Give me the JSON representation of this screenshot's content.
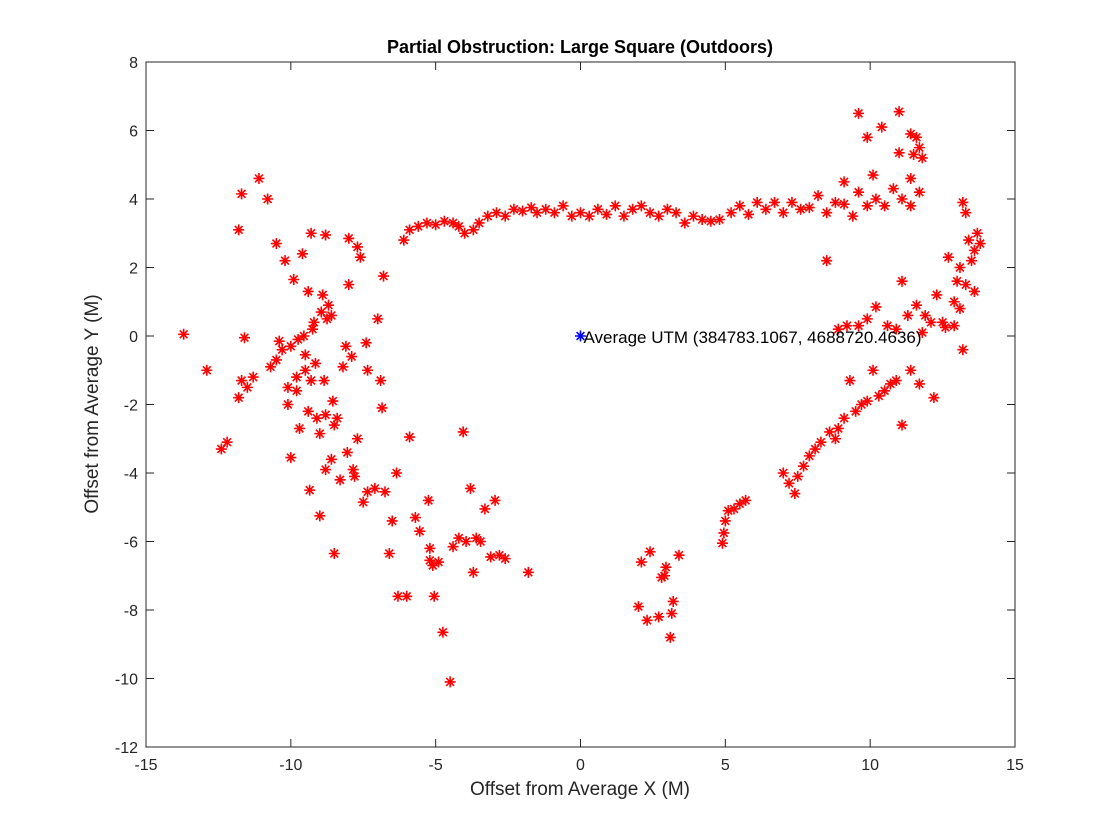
{
  "chart_data": {
    "type": "scatter",
    "title": "Partial Obstruction: Large Square (Outdoors)",
    "xlabel": "Offset from Average X (M)",
    "ylabel": "Offset from Average Y (M)",
    "xlim": [
      -15,
      15
    ],
    "ylim": [
      -12,
      8
    ],
    "xticks": [
      -15,
      -10,
      -5,
      0,
      5,
      10,
      15
    ],
    "yticks": [
      -12,
      -10,
      -8,
      -6,
      -4,
      -2,
      0,
      2,
      4,
      6,
      8
    ],
    "grid": false,
    "marker": "asterisk",
    "colors": {
      "samples": "#ff0000",
      "average": "#0000ff",
      "axes": "#262626"
    },
    "annotation": {
      "x": 0,
      "y": 0,
      "text": "Average UTM (384783.1067, 4688720.4636)"
    },
    "series": [
      {
        "role": "samples",
        "color": "#ff0000",
        "points": [
          [
            -13.7,
            0.05
          ],
          [
            -12.9,
            -1.0
          ],
          [
            -12.4,
            -3.3
          ],
          [
            -12.2,
            -3.1
          ],
          [
            -11.8,
            -1.8
          ],
          [
            -11.7,
            -1.3
          ],
          [
            -11.5,
            -1.5
          ],
          [
            -11.3,
            -1.2
          ],
          [
            -11.6,
            -0.05
          ],
          [
            -11.8,
            3.1
          ],
          [
            -11.7,
            4.15
          ],
          [
            -11.1,
            4.6
          ],
          [
            -10.8,
            4.0
          ],
          [
            -10.7,
            -0.9
          ],
          [
            -10.5,
            -0.7
          ],
          [
            -10.3,
            -0.4
          ],
          [
            -10.4,
            -0.15
          ],
          [
            -10.5,
            2.7
          ],
          [
            -10.2,
            2.2
          ],
          [
            -10.1,
            -1.5
          ],
          [
            -10.1,
            -2.0
          ],
          [
            -10.0,
            -3.55
          ],
          [
            -10.0,
            -0.3
          ],
          [
            -9.9,
            1.65
          ],
          [
            -9.8,
            -1.2
          ],
          [
            -9.8,
            -1.6
          ],
          [
            -9.75,
            -0.1
          ],
          [
            -9.7,
            -2.7
          ],
          [
            -9.6,
            2.4
          ],
          [
            -9.55,
            0.0
          ],
          [
            -9.5,
            -0.55
          ],
          [
            -9.5,
            -1.0
          ],
          [
            -9.4,
            -2.2
          ],
          [
            -9.35,
            -4.5
          ],
          [
            -9.4,
            1.3
          ],
          [
            -9.3,
            -1.3
          ],
          [
            -9.25,
            0.2
          ],
          [
            -9.2,
            0.4
          ],
          [
            -9.3,
            3.0
          ],
          [
            -9.15,
            -0.8
          ],
          [
            -9.1,
            -2.4
          ],
          [
            -9.0,
            -5.25
          ],
          [
            -9.0,
            -2.85
          ],
          [
            -8.95,
            0.7
          ],
          [
            -8.9,
            1.2
          ],
          [
            -8.85,
            -1.3
          ],
          [
            -8.8,
            -2.3
          ],
          [
            -8.8,
            -3.9
          ],
          [
            -8.75,
            0.5
          ],
          [
            -8.7,
            0.9
          ],
          [
            -8.6,
            0.6
          ],
          [
            -8.8,
            2.95
          ],
          [
            -8.6,
            -3.6
          ],
          [
            -8.55,
            -1.9
          ],
          [
            -8.5,
            -2.6
          ],
          [
            -8.4,
            -2.4
          ],
          [
            -8.5,
            -6.35
          ],
          [
            -8.3,
            -4.2
          ],
          [
            -8.2,
            -0.9
          ],
          [
            -8.1,
            -0.3
          ],
          [
            -8.05,
            -3.4
          ],
          [
            -8.0,
            2.85
          ],
          [
            -8.0,
            1.5
          ],
          [
            -7.9,
            -0.6
          ],
          [
            -7.85,
            -3.9
          ],
          [
            -7.8,
            -4.1
          ],
          [
            -7.7,
            -3.0
          ],
          [
            -7.7,
            2.6
          ],
          [
            -7.6,
            2.3
          ],
          [
            -7.5,
            -4.85
          ],
          [
            -7.4,
            -0.2
          ],
          [
            -7.35,
            -1.0
          ],
          [
            -7.35,
            -4.55
          ],
          [
            -7.1,
            -4.45
          ],
          [
            -7.0,
            0.5
          ],
          [
            -6.9,
            -1.3
          ],
          [
            -6.85,
            -2.1
          ],
          [
            -6.8,
            1.75
          ],
          [
            -6.75,
            -4.55
          ],
          [
            -6.6,
            -6.35
          ],
          [
            -6.5,
            -5.4
          ],
          [
            -6.35,
            -4.0
          ],
          [
            -6.3,
            -7.6
          ],
          [
            -6.1,
            2.8
          ],
          [
            -6.0,
            -7.6
          ],
          [
            -5.9,
            -2.95
          ],
          [
            -5.7,
            -5.3
          ],
          [
            -5.55,
            -5.7
          ],
          [
            -5.2,
            -6.2
          ],
          [
            -5.2,
            -6.55
          ],
          [
            -5.25,
            -4.8
          ],
          [
            -5.1,
            -6.7
          ],
          [
            -5.05,
            -7.6
          ],
          [
            -4.9,
            -6.6
          ],
          [
            -4.75,
            -8.65
          ],
          [
            -4.5,
            -10.1
          ],
          [
            -4.4,
            -6.15
          ],
          [
            -4.2,
            -5.9
          ],
          [
            -4.05,
            -2.8
          ],
          [
            -3.95,
            -6.0
          ],
          [
            -3.8,
            -4.45
          ],
          [
            -3.7,
            -6.9
          ],
          [
            -3.6,
            -5.9
          ],
          [
            -3.45,
            -6.0
          ],
          [
            -3.3,
            -5.05
          ],
          [
            -3.1,
            -6.45
          ],
          [
            -2.95,
            -4.8
          ],
          [
            -2.8,
            -6.4
          ],
          [
            -2.6,
            -6.5
          ],
          [
            -1.8,
            -6.9
          ],
          [
            -5.9,
            3.1
          ],
          [
            -5.6,
            3.2
          ],
          [
            -5.3,
            3.3
          ],
          [
            -5.0,
            3.25
          ],
          [
            -4.7,
            3.35
          ],
          [
            -4.4,
            3.3
          ],
          [
            -4.2,
            3.2
          ],
          [
            -4.0,
            3.0
          ],
          [
            -3.7,
            3.1
          ],
          [
            -3.5,
            3.3
          ],
          [
            -3.2,
            3.5
          ],
          [
            -2.9,
            3.6
          ],
          [
            -2.6,
            3.5
          ],
          [
            -2.3,
            3.7
          ],
          [
            -2.0,
            3.65
          ],
          [
            -1.7,
            3.75
          ],
          [
            -1.5,
            3.6
          ],
          [
            -1.2,
            3.7
          ],
          [
            -0.9,
            3.6
          ],
          [
            -0.6,
            3.8
          ],
          [
            -0.3,
            3.5
          ],
          [
            0.0,
            3.6
          ],
          [
            0.3,
            3.5
          ],
          [
            0.6,
            3.7
          ],
          [
            0.9,
            3.55
          ],
          [
            1.2,
            3.8
          ],
          [
            1.5,
            3.5
          ],
          [
            1.8,
            3.7
          ],
          [
            2.1,
            3.8
          ],
          [
            2.4,
            3.6
          ],
          [
            2.7,
            3.5
          ],
          [
            3.0,
            3.7
          ],
          [
            3.3,
            3.6
          ],
          [
            3.6,
            3.3
          ],
          [
            3.9,
            3.5
          ],
          [
            4.2,
            3.4
          ],
          [
            4.5,
            3.35
          ],
          [
            4.8,
            3.4
          ],
          [
            5.2,
            3.6
          ],
          [
            5.5,
            3.8
          ],
          [
            5.8,
            3.55
          ],
          [
            6.1,
            3.9
          ],
          [
            6.4,
            3.7
          ],
          [
            6.7,
            3.9
          ],
          [
            7.0,
            3.6
          ],
          [
            7.3,
            3.9
          ],
          [
            7.6,
            3.7
          ],
          [
            7.9,
            3.75
          ],
          [
            8.2,
            4.1
          ],
          [
            8.5,
            3.6
          ],
          [
            8.8,
            3.9
          ],
          [
            9.1,
            3.85
          ],
          [
            9.4,
            3.5
          ],
          [
            9.6,
            4.2
          ],
          [
            9.9,
            3.8
          ],
          [
            10.2,
            4.0
          ],
          [
            10.5,
            3.8
          ],
          [
            10.8,
            4.3
          ],
          [
            11.1,
            4.0
          ],
          [
            11.4,
            3.8
          ],
          [
            9.6,
            6.5
          ],
          [
            11.0,
            6.55
          ],
          [
            10.4,
            6.1
          ],
          [
            9.9,
            5.8
          ],
          [
            11.4,
            5.9
          ],
          [
            11.6,
            5.8
          ],
          [
            11.7,
            5.5
          ],
          [
            11.5,
            5.3
          ],
          [
            11.8,
            5.2
          ],
          [
            11.0,
            5.35
          ],
          [
            10.1,
            4.7
          ],
          [
            9.1,
            4.5
          ],
          [
            11.4,
            4.6
          ],
          [
            11.7,
            4.2
          ],
          [
            8.5,
            2.2
          ],
          [
            11.1,
            1.6
          ],
          [
            11.3,
            0.6
          ],
          [
            11.6,
            0.9
          ],
          [
            11.9,
            0.6
          ],
          [
            12.3,
            1.2
          ],
          [
            12.5,
            0.4
          ],
          [
            12.7,
            2.3
          ],
          [
            12.9,
            1.0
          ],
          [
            13.0,
            1.6
          ],
          [
            13.1,
            2.0
          ],
          [
            13.2,
            -0.4
          ],
          [
            13.2,
            3.9
          ],
          [
            13.3,
            3.6
          ],
          [
            13.4,
            2.8
          ],
          [
            13.5,
            2.2
          ],
          [
            13.6,
            2.5
          ],
          [
            13.6,
            1.3
          ],
          [
            13.7,
            3.0
          ],
          [
            13.8,
            2.7
          ],
          [
            13.3,
            1.5
          ],
          [
            13.1,
            0.8
          ],
          [
            12.9,
            0.3
          ],
          [
            12.6,
            0.25
          ],
          [
            12.1,
            0.4
          ],
          [
            11.8,
            0.1
          ],
          [
            10.9,
            0.2
          ],
          [
            10.6,
            0.3
          ],
          [
            10.2,
            0.85
          ],
          [
            9.9,
            0.5
          ],
          [
            9.6,
            0.3
          ],
          [
            9.2,
            0.3
          ],
          [
            8.9,
            0.2
          ],
          [
            12.2,
            -1.8
          ],
          [
            11.7,
            -1.4
          ],
          [
            11.4,
            -1.0
          ],
          [
            11.1,
            -2.6
          ],
          [
            10.9,
            -1.3
          ],
          [
            10.7,
            -1.4
          ],
          [
            10.5,
            -1.6
          ],
          [
            10.3,
            -1.75
          ],
          [
            10.1,
            -1.0
          ],
          [
            9.9,
            -1.9
          ],
          [
            9.7,
            -2.0
          ],
          [
            9.5,
            -2.2
          ],
          [
            9.3,
            -1.3
          ],
          [
            9.1,
            -2.4
          ],
          [
            8.9,
            -2.7
          ],
          [
            8.8,
            -3.0
          ],
          [
            8.6,
            -2.8
          ],
          [
            8.3,
            -3.1
          ],
          [
            8.1,
            -3.3
          ],
          [
            7.9,
            -3.5
          ],
          [
            7.7,
            -3.8
          ],
          [
            7.5,
            -4.1
          ],
          [
            7.4,
            -4.6
          ],
          [
            7.2,
            -4.3
          ],
          [
            7.0,
            -4.0
          ],
          [
            5.7,
            -4.8
          ],
          [
            5.5,
            -4.9
          ],
          [
            5.3,
            -5.05
          ],
          [
            5.1,
            -5.1
          ],
          [
            5.0,
            -5.4
          ],
          [
            4.95,
            -5.75
          ],
          [
            4.9,
            -6.05
          ],
          [
            3.4,
            -6.4
          ],
          [
            3.2,
            -7.75
          ],
          [
            3.15,
            -8.1
          ],
          [
            3.1,
            -8.8
          ],
          [
            2.95,
            -6.75
          ],
          [
            2.9,
            -7.0
          ],
          [
            2.8,
            -7.05
          ],
          [
            2.7,
            -8.2
          ],
          [
            2.4,
            -6.3
          ],
          [
            2.3,
            -8.3
          ],
          [
            2.1,
            -6.6
          ],
          [
            2.0,
            -7.9
          ]
        ]
      },
      {
        "role": "average",
        "color": "#0000ff",
        "points": [
          [
            0,
            0
          ]
        ]
      }
    ]
  }
}
